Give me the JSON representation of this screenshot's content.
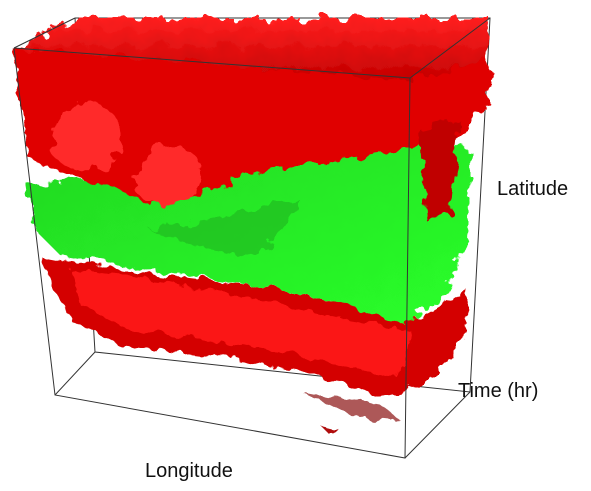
{
  "labels": {
    "latitude": "Latitude",
    "time": "Time (hr)",
    "longitude": "Longitude"
  }
}
